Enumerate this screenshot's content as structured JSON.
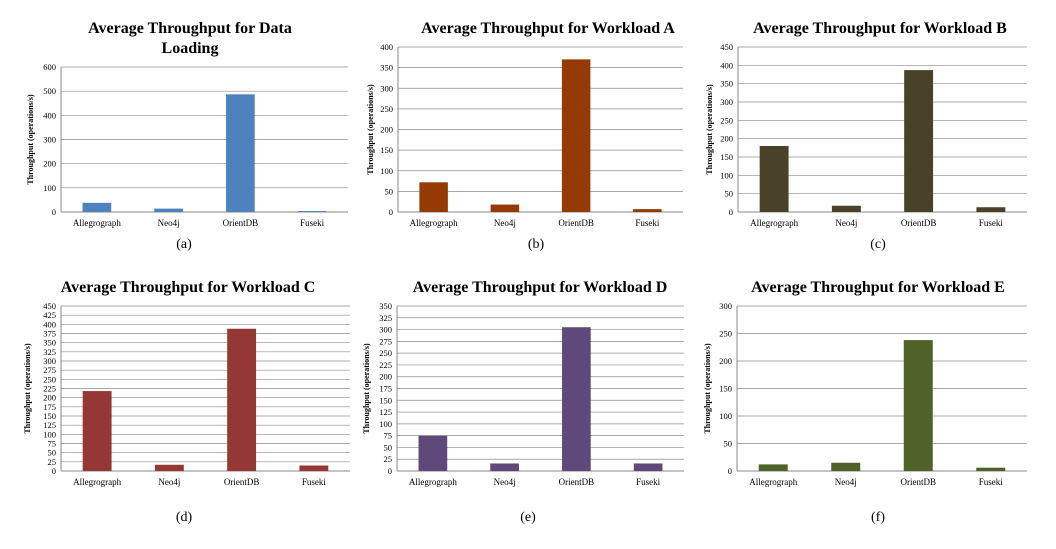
{
  "figure": {
    "charts": [
      {
        "id": "a",
        "chart_data": {
          "type": "bar",
          "title": "Average Throughput for Data Loading",
          "title_lines": [
            "Average Throughput for Data",
            "Loading"
          ],
          "ylabel": "Throughput (operations/s)",
          "xlabel": "",
          "categories": [
            "Allegrograph",
            "Neo4j",
            "OrientDB",
            "Fuseki"
          ],
          "values": [
            38,
            14,
            487,
            4
          ],
          "ylim": [
            0,
            600
          ],
          "yticks": [
            0,
            100,
            200,
            300,
            400,
            500,
            600
          ],
          "grid": true,
          "color": "#4F81BD"
        },
        "caption": "(a)"
      },
      {
        "id": "b",
        "chart_data": {
          "type": "bar",
          "title": "Average Throughput for Workload A",
          "title_lines": [
            "Average Throughput for Workload A"
          ],
          "ylabel": "Throughput (operations/s)",
          "xlabel": "",
          "categories": [
            "Allegrograph",
            "Neo4j",
            "OrientDB",
            "Fuseki"
          ],
          "values": [
            72,
            18,
            370,
            7
          ],
          "ylim": [
            0,
            400
          ],
          "yticks": [
            0,
            50,
            100,
            150,
            200,
            250,
            300,
            350,
            400
          ],
          "grid": true,
          "color": "#953A04"
        },
        "caption": "(b)"
      },
      {
        "id": "c",
        "chart_data": {
          "type": "bar",
          "title": "Average Throughput for Workload B",
          "title_lines": [
            "Average Throughput for Workload B"
          ],
          "ylabel": "Throughput (operations/s)",
          "xlabel": "",
          "categories": [
            "Allegrograph",
            "Neo4j",
            "OrientDB",
            "Fuseki"
          ],
          "values": [
            180,
            17,
            387,
            13
          ],
          "ylim": [
            0,
            450
          ],
          "yticks": [
            0,
            50,
            100,
            150,
            200,
            250,
            300,
            350,
            400,
            450
          ],
          "grid": true,
          "color": "#494229"
        },
        "caption": "(c)"
      },
      {
        "id": "d",
        "chart_data": {
          "type": "bar",
          "title": "Average Throughput for Workload C",
          "title_lines": [
            "Average Throughput for Workload C"
          ],
          "ylabel": "Throughput (operations/s)",
          "xlabel": "",
          "categories": [
            "Allegrograph",
            "Neo4j",
            "OrientDB",
            "Fuseki"
          ],
          "values": [
            218,
            17,
            388,
            15
          ],
          "ylim": [
            0,
            450
          ],
          "yticks": [
            0,
            25,
            50,
            75,
            100,
            125,
            150,
            175,
            200,
            225,
            250,
            275,
            300,
            325,
            350,
            375,
            400,
            425,
            450
          ],
          "ytick_labels": [
            "0",
            "25",
            "50",
            "75",
            "100",
            "125",
            "150",
            "175",
            "200",
            "225",
            "250",
            "275",
            "300",
            "325",
            "350",
            "375",
            "400",
            "425",
            "450"
          ],
          "grid": true,
          "color": "#953735"
        },
        "caption": "(d)"
      },
      {
        "id": "e",
        "chart_data": {
          "type": "bar",
          "title": "Average Throughput for Workload D",
          "title_lines": [
            "Average Throughput for Workload D"
          ],
          "ylabel": "Throughput (operations/s)",
          "xlabel": "",
          "categories": [
            "Allegrograph",
            "Neo4j",
            "OrientDB",
            "Fuseki"
          ],
          "values": [
            75,
            16,
            305,
            16
          ],
          "ylim": [
            0,
            350
          ],
          "yticks": [
            0,
            25,
            50,
            75,
            100,
            125,
            150,
            175,
            200,
            225,
            250,
            275,
            300,
            325,
            350
          ],
          "grid": true,
          "color": "#5F497A"
        },
        "caption": "(e)"
      },
      {
        "id": "f",
        "chart_data": {
          "type": "bar",
          "title": "Average Throughput for Workload E",
          "title_lines": [
            "Average Throughput for Workload E"
          ],
          "ylabel": "Throughput (operations/s)",
          "xlabel": "",
          "categories": [
            "Allegrograph",
            "Neo4j",
            "OrientDB",
            "Fuseki"
          ],
          "values": [
            12,
            15,
            238,
            6
          ],
          "ylim": [
            0,
            300
          ],
          "yticks": [
            0,
            50,
            100,
            150,
            200,
            250,
            300
          ],
          "grid": true,
          "color": "#4F6228"
        },
        "caption": "(f)"
      }
    ]
  }
}
